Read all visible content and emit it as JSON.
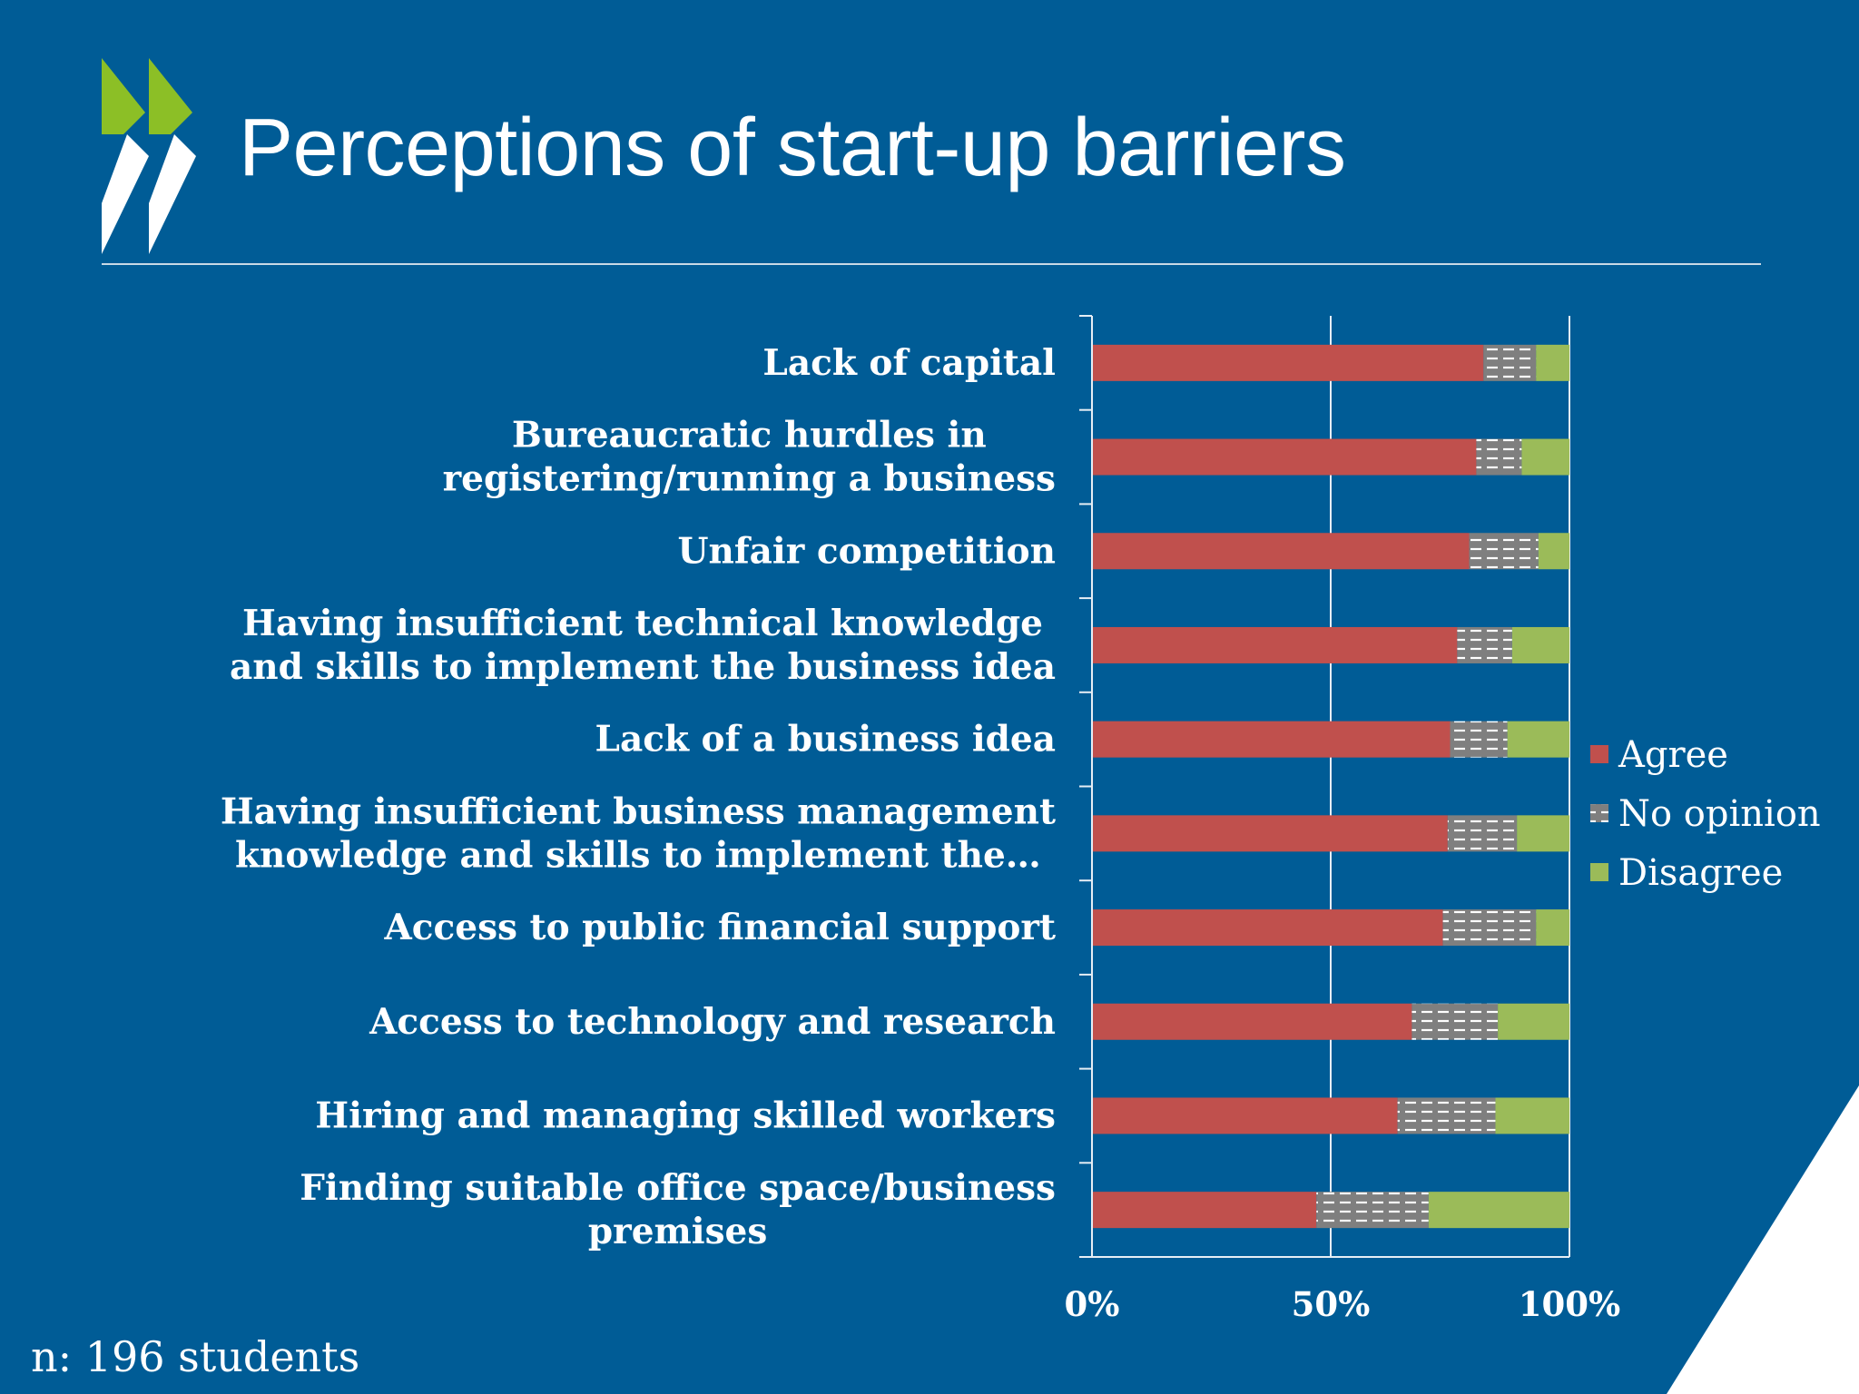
{
  "slide": {
    "title": "Perceptions of start-up barriers",
    "footnote": "n: 196 students"
  },
  "colors": {
    "background": "#005c96",
    "agree": "#c0504d",
    "no_opinion": "#7f7f7f",
    "disagree": "#9bbb59",
    "logo_green": "#8cbf26"
  },
  "chart_data": {
    "type": "bar",
    "orientation": "horizontal",
    "stacked": true,
    "percent_stacked": true,
    "categories": [
      "Lack of capital",
      "Bureaucratic hurdles in registering/running a business",
      "Unfair competition",
      "Having insufficient technical knowledge and skills to implement the business idea",
      "Lack of a business idea",
      "Having insufficient business management knowledge and skills to implement the…",
      "Access to public financial support",
      "Access to technology and research",
      "Hiring and managing skilled workers",
      "Finding suitable office space/business premises"
    ],
    "category_lines": [
      [
        "Lack of capital"
      ],
      [
        "Bureaucratic hurdles in",
        "registering/running a business"
      ],
      [
        "Unfair competition"
      ],
      [
        "Having insufficient technical knowledge",
        "and skills to implement the business idea"
      ],
      [
        "Lack of a business idea"
      ],
      [
        "Having insufficient business management",
        "knowledge and skills to implement the…"
      ],
      [
        "Access to public financial support"
      ],
      [
        "Access to technology and research"
      ],
      [
        "Hiring and managing skilled workers"
      ],
      [
        "Finding suitable office space/business",
        "premises"
      ]
    ],
    "series": [
      {
        "name": "Agree",
        "values": [
          82,
          80.5,
          79,
          76.5,
          75,
          74.5,
          73.5,
          67,
          64,
          47
        ]
      },
      {
        "name": "No opinion",
        "values": [
          11,
          9.5,
          14.5,
          11.5,
          12,
          14.5,
          19.5,
          18,
          20.5,
          23.5
        ]
      },
      {
        "name": "Disagree",
        "values": [
          7,
          10,
          6.5,
          12,
          13,
          11,
          7,
          15,
          15.5,
          29.5
        ]
      }
    ],
    "x_ticks": [
      "0%",
      "50%",
      "100%"
    ],
    "xlim": [
      0,
      100
    ],
    "gridlines": true,
    "legend_position": "right"
  }
}
